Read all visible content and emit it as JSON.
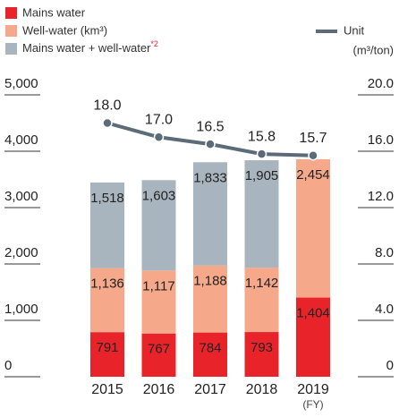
{
  "chart_data": {
    "type": "bar",
    "categories": [
      "2015",
      "2016",
      "2017",
      "2018",
      "2019"
    ],
    "x_label": "(FY)",
    "footnote_mark": "*2",
    "y2_label": "(m³/ton)",
    "stacked": true,
    "series": [
      {
        "name": "Mains water",
        "color": "#e8242a",
        "values": [
          791,
          767,
          784,
          793,
          1404
        ],
        "value_labels": [
          "791",
          "767",
          "784",
          "793",
          "1,404"
        ]
      },
      {
        "name": "Well-water (km³)",
        "color": "#f5a88a",
        "values": [
          1136,
          1117,
          1188,
          1142,
          2454
        ],
        "value_labels": [
          "1,136",
          "1,117",
          "1,188",
          "1,142",
          "2,454"
        ]
      },
      {
        "name": "Mains water + well-water",
        "color": "#a9b5be",
        "values": [
          1518,
          1603,
          1833,
          1905,
          null
        ],
        "value_labels": [
          "1,518",
          "1,603",
          "1,833",
          "1,905",
          null
        ]
      },
      {
        "name": "Unit",
        "type": "line",
        "axis": "y2",
        "color": "#5b6b79",
        "values": [
          18.0,
          17.0,
          16.5,
          15.8,
          15.7
        ],
        "value_labels": [
          "18.0",
          "17.0",
          "16.5",
          "15.8",
          "15.7"
        ]
      }
    ],
    "ylim": [
      0,
      5000
    ],
    "yticks": [
      0,
      {
        "value": 1000,
        "label": "1,000"
      },
      {
        "value": 2000,
        "label": "2,000"
      },
      {
        "value": 3000,
        "label": "3,000"
      },
      {
        "value": 4000,
        "label": "4,000"
      },
      {
        "value": 5000,
        "label": "5,000"
      }
    ],
    "y2lim": [
      0,
      20
    ],
    "y2ticks": [
      0,
      {
        "value": 4,
        "label": "4.0"
      },
      {
        "value": 8,
        "label": "8.0"
      },
      {
        "value": 12,
        "label": "12.0"
      },
      {
        "value": 16,
        "label": "16.0"
      },
      {
        "value": 20,
        "label": "20.0"
      }
    ]
  }
}
